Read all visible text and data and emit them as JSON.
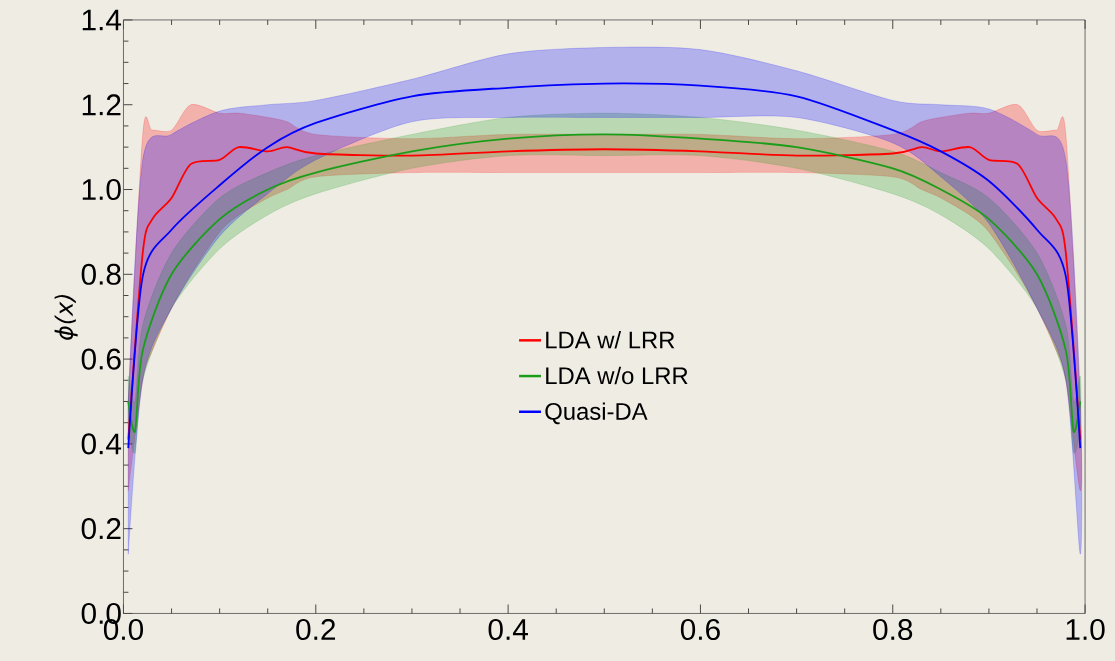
{
  "chart_data": {
    "type": "line",
    "ylabel": "ϕ(x)",
    "xlim": [
      0,
      1
    ],
    "ylim": [
      0,
      1.4
    ],
    "xticks": [
      {
        "value": 0,
        "label": "0.0"
      },
      0.2,
      0.4,
      0.6,
      0.8,
      {
        "value": 1,
        "label": "1.0"
      }
    ],
    "yticks": [
      {
        "value": 0,
        "label": "0.0"
      },
      0.2,
      0.4,
      0.6,
      0.8,
      {
        "value": 1,
        "label": "1.0"
      },
      1.2,
      1.4
    ],
    "legend": "center",
    "grid": false,
    "marker": "none",
    "line_style": "solid",
    "series": [
      {
        "name": "LDA w/ LRR",
        "color": "#ff0000",
        "x": [
          0.005,
          0.02,
          0.03,
          0.05,
          0.07,
          0.1,
          0.12,
          0.15,
          0.17,
          0.2,
          0.3,
          0.4,
          0.5,
          0.6,
          0.7,
          0.8,
          0.83,
          0.85,
          0.88,
          0.9,
          0.93,
          0.95,
          0.97,
          0.98,
          0.995
        ],
        "values": [
          0.41,
          0.85,
          0.93,
          0.98,
          1.06,
          1.07,
          1.1,
          1.09,
          1.1,
          1.085,
          1.08,
          1.09,
          1.095,
          1.09,
          1.08,
          1.085,
          1.1,
          1.09,
          1.1,
          1.07,
          1.06,
          0.98,
          0.93,
          0.85,
          0.41
        ],
        "upper": [
          0.5,
          1.13,
          1.14,
          1.14,
          1.2,
          1.18,
          1.18,
          1.17,
          1.16,
          1.13,
          1.12,
          1.13,
          1.13,
          1.13,
          1.12,
          1.13,
          1.16,
          1.17,
          1.18,
          1.18,
          1.2,
          1.14,
          1.14,
          1.13,
          0.5
        ],
        "lower": [
          0.29,
          0.55,
          0.62,
          0.72,
          0.8,
          0.9,
          0.94,
          0.98,
          1.0,
          1.03,
          1.04,
          1.04,
          1.04,
          1.04,
          1.04,
          1.03,
          1.0,
          0.98,
          0.94,
          0.9,
          0.8,
          0.72,
          0.62,
          0.55,
          0.29
        ]
      },
      {
        "name": "LDA w/o LRR",
        "color": "#1a9e1a",
        "x": [
          0.005,
          0.012,
          0.02,
          0.05,
          0.1,
          0.15,
          0.2,
          0.3,
          0.4,
          0.5,
          0.6,
          0.7,
          0.8,
          0.85,
          0.9,
          0.95,
          0.98,
          0.988,
          0.995
        ],
        "values": [
          0.5,
          0.43,
          0.62,
          0.8,
          0.93,
          1.0,
          1.04,
          1.09,
          1.12,
          1.13,
          1.12,
          1.1,
          1.05,
          1.0,
          0.93,
          0.8,
          0.62,
          0.43,
          0.5
        ],
        "upper": [
          0.56,
          0.5,
          0.68,
          0.85,
          0.98,
          1.04,
          1.08,
          1.13,
          1.17,
          1.18,
          1.17,
          1.14,
          1.09,
          1.04,
          0.98,
          0.85,
          0.68,
          0.5,
          0.56
        ],
        "lower": [
          0.44,
          0.38,
          0.55,
          0.72,
          0.86,
          0.94,
          0.99,
          1.05,
          1.08,
          1.08,
          1.08,
          1.05,
          0.99,
          0.94,
          0.86,
          0.72,
          0.55,
          0.38,
          0.44
        ]
      },
      {
        "name": "Quasi-DA",
        "color": "#0000ff",
        "x": [
          0.005,
          0.02,
          0.05,
          0.1,
          0.15,
          0.2,
          0.3,
          0.4,
          0.5,
          0.6,
          0.7,
          0.8,
          0.85,
          0.9,
          0.95,
          0.98,
          0.995
        ],
        "values": [
          0.39,
          0.795,
          0.905,
          1.01,
          1.1,
          1.157,
          1.22,
          1.24,
          1.25,
          1.245,
          1.22,
          1.14,
          1.09,
          1.02,
          0.905,
          0.795,
          0.39
        ],
        "upper": [
          0.5,
          1.07,
          1.13,
          1.185,
          1.2,
          1.21,
          1.26,
          1.32,
          1.335,
          1.33,
          1.28,
          1.21,
          1.2,
          1.19,
          1.13,
          1.07,
          0.5
        ],
        "lower": [
          0.14,
          0.55,
          0.72,
          0.89,
          0.99,
          1.07,
          1.16,
          1.17,
          1.17,
          1.17,
          1.17,
          1.11,
          1.03,
          0.92,
          0.72,
          0.55,
          0.14
        ]
      }
    ]
  }
}
